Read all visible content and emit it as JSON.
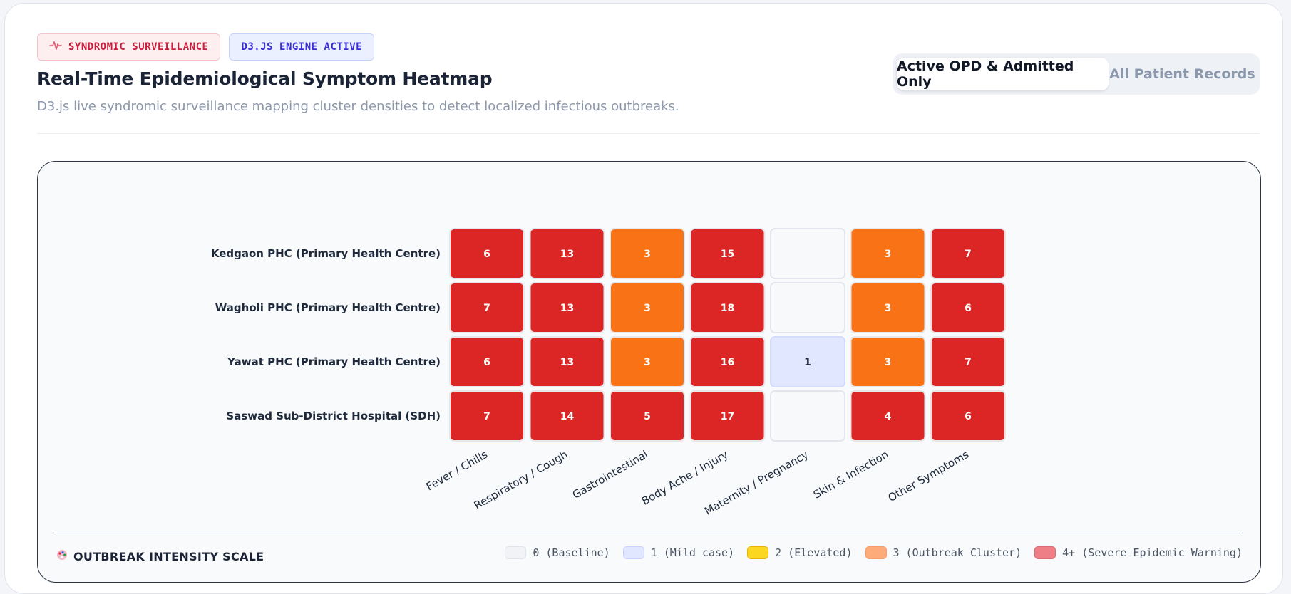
{
  "header": {
    "badge_surveillance": "SYNDROMIC SURVEILLANCE",
    "badge_engine": "D3.JS ENGINE ACTIVE",
    "title": "Real-Time Epidemiological Symptom Heatmap",
    "subtitle": "D3.js live syndromic surveillance mapping cluster densities to detect localized infectious outbreaks."
  },
  "toggle": {
    "active_label": "Active OPD & Admitted Only",
    "inactive_label": "All Patient Records"
  },
  "legend": {
    "title": "OUTBREAK INTENSITY SCALE",
    "items": [
      {
        "label": "0 (Baseline)",
        "color": "#f1f3f7",
        "border": "#dfe3ea"
      },
      {
        "label": "1 (Mild case)",
        "color": "#e0e7ff",
        "border": "#c7d2fe"
      },
      {
        "label": "2 (Elevated)",
        "color": "#fcd721",
        "border": "#eab308"
      },
      {
        "label": "3 (Outbreak Cluster)",
        "color": "#fdab78",
        "border": "#f59e6b"
      },
      {
        "label": "4+ (Severe Epidemic Warning)",
        "color": "#ef7f87",
        "border": "#e06b74"
      }
    ]
  },
  "chart_data": {
    "type": "heatmap",
    "rows": [
      "Kedgaon PHC (Primary Health Centre)",
      "Wagholi PHC (Primary Health Centre)",
      "Yawat PHC (Primary Health Centre)",
      "Saswad Sub-District Hospital (SDH)"
    ],
    "columns": [
      "Fever / Chills",
      "Respiratory / Cough",
      "Gastrointestinal",
      "Body Ache / Injury",
      "Maternity / Pregnancy",
      "Skin & Infection",
      "Other Symptoms"
    ],
    "values": [
      [
        6,
        13,
        3,
        15,
        0,
        3,
        7
      ],
      [
        7,
        13,
        3,
        18,
        0,
        3,
        6
      ],
      [
        6,
        13,
        3,
        16,
        1,
        3,
        7
      ],
      [
        7,
        14,
        5,
        17,
        0,
        4,
        6
      ]
    ],
    "zero_label_shown": false,
    "colors": {
      "0": "#f8f9fb",
      "1": "#e0e7ff",
      "2": "#facc15",
      "3": "#f97316",
      "4+": "#dc2626"
    }
  }
}
